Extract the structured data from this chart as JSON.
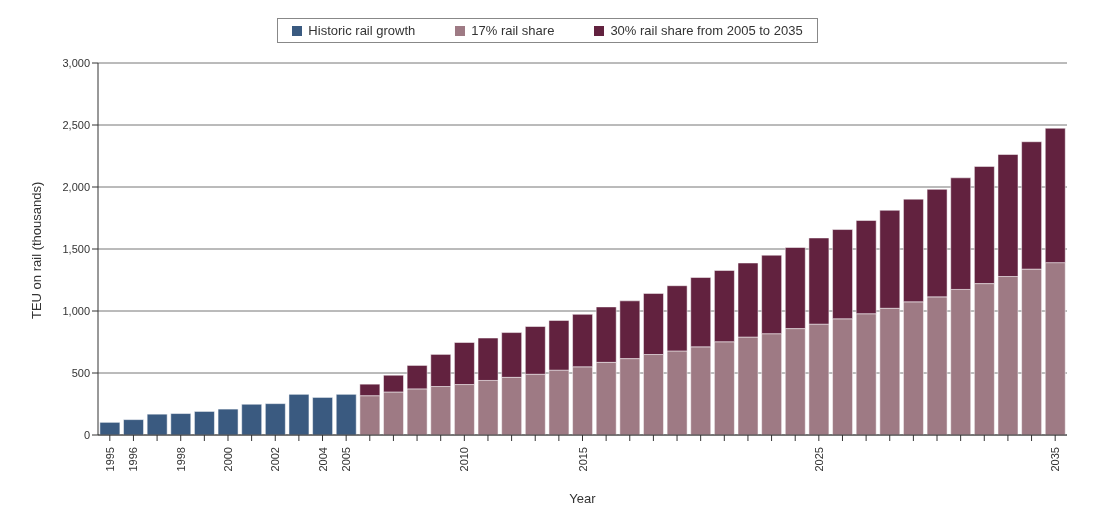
{
  "chart_data": {
    "type": "bar",
    "stacked": true,
    "xlabel": "Year",
    "ylabel": "TEU on rail (thousands)",
    "categories": [
      "1995",
      "1996",
      null,
      "1998",
      null,
      "2000",
      null,
      "2002",
      null,
      "2004",
      "2005",
      null,
      null,
      null,
      null,
      "2010",
      null,
      null,
      null,
      null,
      "2015",
      null,
      null,
      null,
      null,
      null,
      null,
      null,
      null,
      null,
      "2025",
      null,
      null,
      null,
      null,
      null,
      null,
      null,
      null,
      null,
      "2035"
    ],
    "series": [
      {
        "name": "Historic rail growth",
        "color": "#3a5a80",
        "values": [
          102,
          124,
          168,
          173,
          190,
          209,
          248,
          253,
          328,
          303,
          328,
          null,
          null,
          null,
          null,
          null,
          null,
          null,
          null,
          null,
          null,
          null,
          null,
          null,
          null,
          null,
          null,
          null,
          null,
          null,
          null,
          null,
          null,
          null,
          null,
          null,
          null,
          null,
          null,
          null,
          null
        ]
      },
      {
        "name": "17% rail share",
        "color": "#9e7a84",
        "values": [
          null,
          null,
          null,
          null,
          null,
          null,
          null,
          null,
          null,
          null,
          null,
          317,
          347,
          372,
          391,
          407,
          440,
          465,
          490,
          523,
          550,
          586,
          616,
          649,
          678,
          711,
          752,
          790,
          817,
          858,
          894,
          937,
          978,
          1022,
          1074,
          1114,
          1174,
          1221,
          1278,
          1338,
          1390
        ]
      },
      {
        "name": "30% rail share from 2005 to 2035",
        "color": "#62223f",
        "values": [
          null,
          null,
          null,
          null,
          null,
          null,
          null,
          null,
          null,
          null,
          null,
          93,
          135,
          189,
          259,
          339,
          342,
          361,
          385,
          401,
          423,
          447,
          466,
          493,
          526,
          559,
          575,
          597,
          633,
          654,
          695,
          720,
          752,
          790,
          828,
          867,
          900,
          945,
          984,
          1027,
          1084
        ]
      }
    ],
    "ylim": [
      0,
      3000
    ],
    "yticks": [
      0,
      {
        "value": 500,
        "label": "500"
      },
      {
        "value": 1000,
        "label": "1,000"
      },
      {
        "value": 1500,
        "label": "1,500"
      },
      {
        "value": 2000,
        "label": "2,000"
      },
      {
        "value": 2500,
        "label": "2,500"
      },
      {
        "value": 3000,
        "label": "3,000"
      }
    ],
    "grid": "y",
    "legend": "top"
  }
}
